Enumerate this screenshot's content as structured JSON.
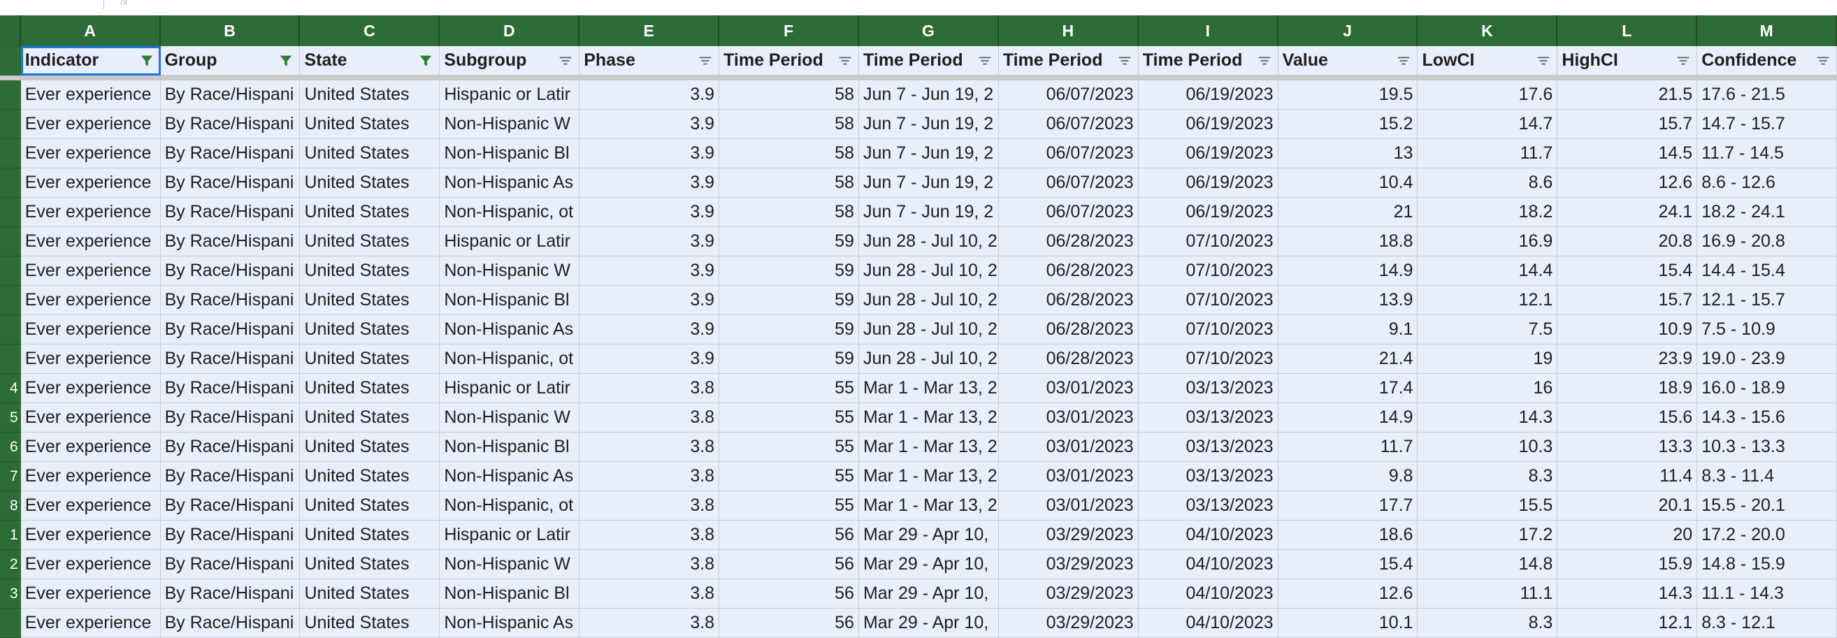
{
  "columns": [
    "A",
    "B",
    "C",
    "D",
    "E",
    "F",
    "G",
    "H",
    "I",
    "J",
    "K",
    "L",
    "M"
  ],
  "headers": [
    {
      "label": "Indicator",
      "filter": "active-filter-icon"
    },
    {
      "label": "Group",
      "filter": "active-filter-icon"
    },
    {
      "label": "State",
      "filter": "active-filter-icon"
    },
    {
      "label": "Subgroup",
      "filter": "filter-icon"
    },
    {
      "label": "Phase",
      "filter": "filter-icon"
    },
    {
      "label": "Time Period",
      "filter": "filter-icon"
    },
    {
      "label": "Time Period",
      "filter": "filter-icon"
    },
    {
      "label": "Time Period",
      "filter": "filter-icon"
    },
    {
      "label": "Time Period",
      "filter": "filter-icon"
    },
    {
      "label": "Value",
      "filter": "filter-icon"
    },
    {
      "label": "LowCI",
      "filter": "filter-icon"
    },
    {
      "label": "HighCI",
      "filter": "filter-icon"
    },
    {
      "label": "Confidence",
      "filter": "filter-icon"
    }
  ],
  "row_numbers": [
    "",
    "",
    "",
    "",
    "",
    "",
    "",
    "",
    "",
    "",
    "4",
    "5",
    "6",
    "7",
    "8",
    "1",
    "2",
    "3",
    ""
  ],
  "rows": [
    [
      "Ever experience",
      "By Race/Hispani",
      "United States",
      "Hispanic or Latir",
      "3.9",
      "58",
      "Jun 7 - Jun 19, 2",
      "06/07/2023",
      "06/19/2023",
      "19.5",
      "17.6",
      "21.5",
      "17.6 - 21.5"
    ],
    [
      "Ever experience",
      "By Race/Hispani",
      "United States",
      "Non-Hispanic W",
      "3.9",
      "58",
      "Jun 7 - Jun 19, 2",
      "06/07/2023",
      "06/19/2023",
      "15.2",
      "14.7",
      "15.7",
      "14.7 - 15.7"
    ],
    [
      "Ever experience",
      "By Race/Hispani",
      "United States",
      "Non-Hispanic Bl",
      "3.9",
      "58",
      "Jun 7 - Jun 19, 2",
      "06/07/2023",
      "06/19/2023",
      "13",
      "11.7",
      "14.5",
      "11.7 - 14.5"
    ],
    [
      "Ever experience",
      "By Race/Hispani",
      "United States",
      "Non-Hispanic As",
      "3.9",
      "58",
      "Jun 7 - Jun 19, 2",
      "06/07/2023",
      "06/19/2023",
      "10.4",
      "8.6",
      "12.6",
      "8.6 - 12.6"
    ],
    [
      "Ever experience",
      "By Race/Hispani",
      "United States",
      "Non-Hispanic, ot",
      "3.9",
      "58",
      "Jun 7 - Jun 19, 2",
      "06/07/2023",
      "06/19/2023",
      "21",
      "18.2",
      "24.1",
      "18.2 - 24.1"
    ],
    [
      "Ever experience",
      "By Race/Hispani",
      "United States",
      "Hispanic or Latir",
      "3.9",
      "59",
      "Jun 28 - Jul 10, 2",
      "06/28/2023",
      "07/10/2023",
      "18.8",
      "16.9",
      "20.8",
      "16.9 - 20.8"
    ],
    [
      "Ever experience",
      "By Race/Hispani",
      "United States",
      "Non-Hispanic W",
      "3.9",
      "59",
      "Jun 28 - Jul 10, 2",
      "06/28/2023",
      "07/10/2023",
      "14.9",
      "14.4",
      "15.4",
      "14.4 - 15.4"
    ],
    [
      "Ever experience",
      "By Race/Hispani",
      "United States",
      "Non-Hispanic Bl",
      "3.9",
      "59",
      "Jun 28 - Jul 10, 2",
      "06/28/2023",
      "07/10/2023",
      "13.9",
      "12.1",
      "15.7",
      "12.1 - 15.7"
    ],
    [
      "Ever experience",
      "By Race/Hispani",
      "United States",
      "Non-Hispanic As",
      "3.9",
      "59",
      "Jun 28 - Jul 10, 2",
      "06/28/2023",
      "07/10/2023",
      "9.1",
      "7.5",
      "10.9",
      "7.5 - 10.9"
    ],
    [
      "Ever experience",
      "By Race/Hispani",
      "United States",
      "Non-Hispanic, ot",
      "3.9",
      "59",
      "Jun 28 - Jul 10, 2",
      "06/28/2023",
      "07/10/2023",
      "21.4",
      "19",
      "23.9",
      "19.0 - 23.9"
    ],
    [
      "Ever experience",
      "By Race/Hispani",
      "United States",
      "Hispanic or Latir",
      "3.8",
      "55",
      "Mar 1 - Mar 13, 2",
      "03/01/2023",
      "03/13/2023",
      "17.4",
      "16",
      "18.9",
      "16.0 - 18.9"
    ],
    [
      "Ever experience",
      "By Race/Hispani",
      "United States",
      "Non-Hispanic W",
      "3.8",
      "55",
      "Mar 1 - Mar 13, 2",
      "03/01/2023",
      "03/13/2023",
      "14.9",
      "14.3",
      "15.6",
      "14.3 - 15.6"
    ],
    [
      "Ever experience",
      "By Race/Hispani",
      "United States",
      "Non-Hispanic Bl",
      "3.8",
      "55",
      "Mar 1 - Mar 13, 2",
      "03/01/2023",
      "03/13/2023",
      "11.7",
      "10.3",
      "13.3",
      "10.3 - 13.3"
    ],
    [
      "Ever experience",
      "By Race/Hispani",
      "United States",
      "Non-Hispanic As",
      "3.8",
      "55",
      "Mar 1 - Mar 13, 2",
      "03/01/2023",
      "03/13/2023",
      "9.8",
      "8.3",
      "11.4",
      "8.3 - 11.4"
    ],
    [
      "Ever experience",
      "By Race/Hispani",
      "United States",
      "Non-Hispanic, ot",
      "3.8",
      "55",
      "Mar 1 - Mar 13, 2",
      "03/01/2023",
      "03/13/2023",
      "17.7",
      "15.5",
      "20.1",
      "15.5 - 20.1"
    ],
    [
      "Ever experience",
      "By Race/Hispani",
      "United States",
      "Hispanic or Latir",
      "3.8",
      "56",
      "Mar 29 - Apr 10,",
      "03/29/2023",
      "04/10/2023",
      "18.6",
      "17.2",
      "20",
      "17.2 - 20.0"
    ],
    [
      "Ever experience",
      "By Race/Hispani",
      "United States",
      "Non-Hispanic W",
      "3.8",
      "56",
      "Mar 29 - Apr 10,",
      "03/29/2023",
      "04/10/2023",
      "15.4",
      "14.8",
      "15.9",
      "14.8 - 15.9"
    ],
    [
      "Ever experience",
      "By Race/Hispani",
      "United States",
      "Non-Hispanic Bl",
      "3.8",
      "56",
      "Mar 29 - Apr 10,",
      "03/29/2023",
      "04/10/2023",
      "12.6",
      "11.1",
      "14.3",
      "11.1 - 14.3"
    ],
    [
      "Ever experience",
      "By Race/Hispani",
      "United States",
      "Non-Hispanic As",
      "3.8",
      "56",
      "Mar 29 - Apr 10,",
      "03/29/2023",
      "04/10/2023",
      "10.1",
      "8.3",
      "12.1",
      "8.3 - 12.1"
    ]
  ],
  "numeric_columns": [
    4,
    5,
    7,
    8,
    9,
    10,
    11
  ],
  "colors": {
    "header_green": "#2d6b37",
    "cell_bg": "#e8eefa",
    "filter_active": "#2e7d32",
    "filter_icon": "#5f6368",
    "selection": "#1a73e8"
  }
}
